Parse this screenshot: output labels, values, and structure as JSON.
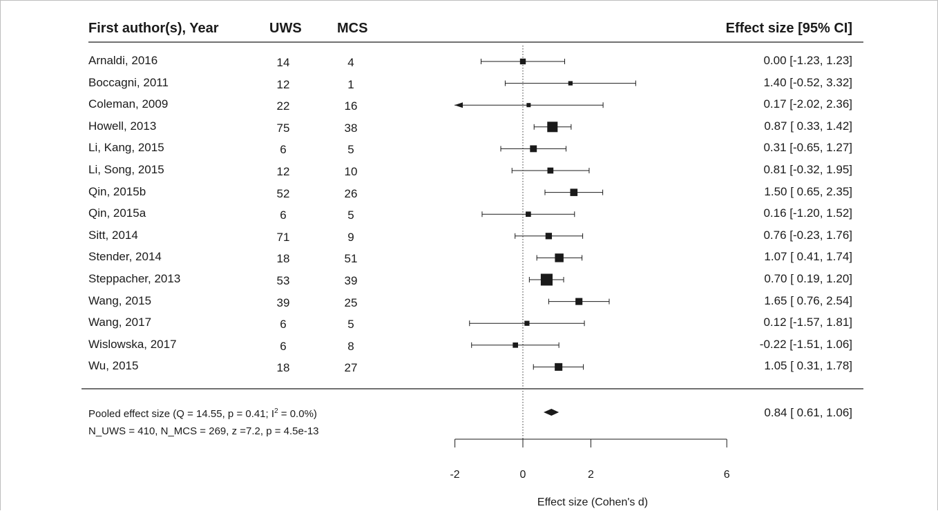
{
  "header": {
    "author_col": "First author(s), Year",
    "uws_col": "UWS",
    "mcs_col": "MCS",
    "es_col": "Effect size [95% CI]"
  },
  "chart_data": {
    "type": "forest",
    "xlabel": "Effect size (Cohen's d)",
    "xlim": [
      -2,
      6
    ],
    "ticks": [
      -2,
      0,
      2,
      6
    ],
    "reference_line": 0,
    "studies": [
      {
        "label": "Arnaldi, 2016",
        "uws": "14",
        "mcs": "4",
        "es": 0.0,
        "lo": -1.23,
        "hi": 1.23,
        "text": "0.00 [-1.23, 1.23]",
        "weight": 0.08
      },
      {
        "label": "Boccagni, 2011",
        "uws": "12",
        "mcs": "1",
        "es": 1.4,
        "lo": -0.52,
        "hi": 3.32,
        "text": "1.40 [-0.52, 3.32]",
        "weight": 0.03
      },
      {
        "label": "Coleman, 2009",
        "uws": "22",
        "mcs": "16",
        "es": 0.17,
        "lo": -2.02,
        "hi": 2.36,
        "text": "0.17 [-2.02, 2.36]",
        "weight": 0.025
      },
      {
        "label": "Howell, 2013",
        "uws": "75",
        "mcs": "38",
        "es": 0.87,
        "lo": 0.33,
        "hi": 1.42,
        "text": "0.87 [ 0.33, 1.42]",
        "weight": 0.4
      },
      {
        "label": "Li, Kang, 2015",
        "uws": "6",
        "mcs": "5",
        "es": 0.31,
        "lo": -0.65,
        "hi": 1.27,
        "text": "0.31 [-0.65, 1.27]",
        "weight": 0.13
      },
      {
        "label": "Li, Song, 2015",
        "uws": "12",
        "mcs": "10",
        "es": 0.81,
        "lo": -0.32,
        "hi": 1.95,
        "text": "0.81 [-0.32, 1.95]",
        "weight": 0.09
      },
      {
        "label": "Qin, 2015b",
        "uws": "52",
        "mcs": "26",
        "es": 1.5,
        "lo": 0.65,
        "hi": 2.35,
        "text": "1.50 [ 0.65, 2.35]",
        "weight": 0.16
      },
      {
        "label": "Qin, 2015a",
        "uws": "6",
        "mcs": "5",
        "es": 0.16,
        "lo": -1.2,
        "hi": 1.52,
        "text": "0.16 [-1.20, 1.52]",
        "weight": 0.06
      },
      {
        "label": "Sitt, 2014",
        "uws": "71",
        "mcs": "9",
        "es": 0.76,
        "lo": -0.23,
        "hi": 1.76,
        "text": "0.76 [-0.23, 1.76]",
        "weight": 0.11
      },
      {
        "label": "Stender, 2014",
        "uws": "18",
        "mcs": "51",
        "es": 1.07,
        "lo": 0.41,
        "hi": 1.74,
        "text": "1.07 [ 0.41, 1.74]",
        "weight": 0.25
      },
      {
        "label": "Steppacher, 2013",
        "uws": "53",
        "mcs": "39",
        "es": 0.7,
        "lo": 0.19,
        "hi": 1.2,
        "text": "0.70 [ 0.19, 1.20]",
        "weight": 0.55
      },
      {
        "label": "Wang, 2015",
        "uws": "39",
        "mcs": "25",
        "es": 1.65,
        "lo": 0.76,
        "hi": 2.54,
        "text": "1.65 [ 0.76, 2.54]",
        "weight": 0.14
      },
      {
        "label": "Wang, 2017",
        "uws": "6",
        "mcs": "5",
        "es": 0.12,
        "lo": -1.57,
        "hi": 1.81,
        "text": "0.12 [-1.57, 1.81]",
        "weight": 0.05
      },
      {
        "label": "Wislowska, 2017",
        "uws": "6",
        "mcs": "8",
        "es": -0.22,
        "lo": -1.51,
        "hi": 1.06,
        "text": "-0.22 [-1.51, 1.06]",
        "weight": 0.06
      },
      {
        "label": "Wu, 2015",
        "uws": "18",
        "mcs": "27",
        "es": 1.05,
        "lo": 0.31,
        "hi": 1.78,
        "text": "1.05 [ 0.31, 1.78]",
        "weight": 0.18
      }
    ],
    "pooled": {
      "es": 0.84,
      "lo": 0.61,
      "hi": 1.06,
      "text": "0.84 [ 0.61, 1.06]"
    }
  },
  "footer": {
    "pooled_prefix": "Pooled effect size (Q = 14.55, p = 0.41; I",
    "pooled_sup": "2",
    "pooled_suffix": " = 0.0%)",
    "stats_line": "N_UWS = 410, N_MCS = 269, z =7.2, p = 4.5e-13"
  }
}
